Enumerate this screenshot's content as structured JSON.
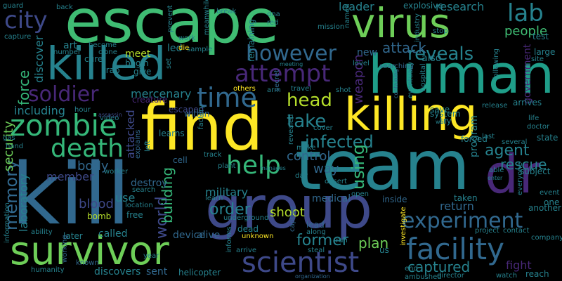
{
  "colors": {
    "background": "#000000",
    "yellow": "#fde725",
    "lime": "#b5de2b",
    "green": "#6ece58",
    "teal_green": "#35b779",
    "teal": "#1f9e89",
    "blue_teal": "#26828e",
    "blue": "#31688e",
    "indigo": "#3e4989",
    "purple": "#482878",
    "dark_purple": "#440154"
  },
  "words": {
    "escape": "escape",
    "kill": "kill",
    "team": "team",
    "find": "find",
    "human": "human",
    "group": "group",
    "killed": "killed",
    "killing": "killing",
    "virus": "virus",
    "survivor": "survivor",
    "dr": "dr",
    "facility": "facility",
    "zombie": "zombie",
    "scientist": "scientist",
    "death": "death",
    "attempt": "attempt",
    "time": "time",
    "city": "city",
    "help": "help",
    "however": "however",
    "soldier": "soldier",
    "lab": "lab",
    "experiment": "experiment",
    "reveals": "reveals",
    "take": "take",
    "head": "head",
    "infected": "infected",
    "agent": "agent",
    "memory": "memory",
    "using": "using",
    "world": "world",
    "order": "order",
    "former": "former",
    "captured": "captured",
    "attack": "attack",
    "rescue": "rescue",
    "security": "security",
    "force": "force",
    "plan": "plan",
    "building": "building",
    "weapon": "weapon",
    "military": "military",
    "shoot": "shoot",
    "body": "body",
    "blood": "blood",
    "people": "people",
    "control": "control",
    "way": "way",
    "mercenary": "mercenary",
    "research": "research",
    "leader": "leader",
    "discover": "discover",
    "laboratory": "laboratory",
    "member": "member",
    "return": "return",
    "including": "including",
    "use": "use",
    "attacked": "attacked",
    "destroy": "destroy",
    "fight": "fight",
    "discovers": "discovers",
    "sent": "sent",
    "called": "called",
    "device": "device",
    "alive": "alive",
    "later": "later",
    "medical": "medical",
    "new": "new",
    "also": "also",
    "program": "program",
    "government": "government",
    "lead": "lead",
    "us": "us",
    "inside": "inside",
    "remaining": "remaining",
    "art": "art",
    "meet": "meet",
    "led": "led",
    "cure": "cure",
    "trap": "trap",
    "give": "give",
    "begin": "begin",
    "clone": "clone",
    "creature": "creature",
    "escaped": "escaped",
    "within": "within",
    "learns": "learns",
    "factory": "factory",
    "world_word": "world",
    "free": "free",
    "location": "location",
    "worker": "worker",
    "search": "search",
    "bomb": "bomb",
    "ability": "ability",
    "humanity": "humanity",
    "information": "information",
    "year": "year",
    "helicopter": "helicopter",
    "dead": "dead",
    "unknown": "unknown",
    "underground": "underground",
    "arrive": "arrive",
    "captive": "captive",
    "steal": "steal",
    "along": "along",
    "others": "others",
    "arm": "arm",
    "travel": "travel",
    "shot": "shot",
    "secret": "secret",
    "cover": "cover",
    "desert": "desert",
    "day": "day",
    "open": "open",
    "make": "make",
    "revealed": "revealed",
    "plant": "plant",
    "track": "track",
    "learn": "learn",
    "cell": "cell",
    "left": "left",
    "explains": "explains",
    "video": "video",
    "hour": "hour",
    "assassin": "assassin",
    "gas": "gas",
    "hand": "hand",
    "capture": "capture",
    "guard": "guard",
    "back": "back",
    "become": "become",
    "number": "number",
    "set": "set",
    "sample": "sample",
    "work": "work",
    "die": "die",
    "prevent": "prevent",
    "meanwhile": "meanwhile",
    "dna": "dna",
    "red": "red",
    "mission": "mission",
    "named": "named",
    "break": "break",
    "explosive": "explosive",
    "test": "test",
    "stop": "stop",
    "industry": "industry",
    "large": "large",
    "site": "site",
    "following": "following",
    "searching": "searching",
    "meeting": "meeting",
    "level": "level",
    "containing": "containing",
    "eventually": "eventually",
    "hospital": "hospital",
    "system": "system",
    "try": "try",
    "wall": "wall",
    "save": "save",
    "release": "release",
    "arrives": "arrives",
    "life": "life",
    "doctor": "doctor",
    "state": "state",
    "forced": "forced",
    "last": "last",
    "several": "several",
    "able": "able",
    "enter": "enter",
    "subject": "subject",
    "taken": "taken",
    "event": "event",
    "one": "one",
    "another": "another",
    "everyone": "everyone",
    "contact": "contact",
    "project": "project",
    "company": "company",
    "investigate": "investigate",
    "end": "end",
    "ambushed": "ambushed",
    "director": "director",
    "watch": "watch",
    "reach": "reach",
    "informs": "informs",
    "run": "run",
    "organization": "organization",
    "known": "known",
    "working": "working",
    "manages": "manages"
  }
}
